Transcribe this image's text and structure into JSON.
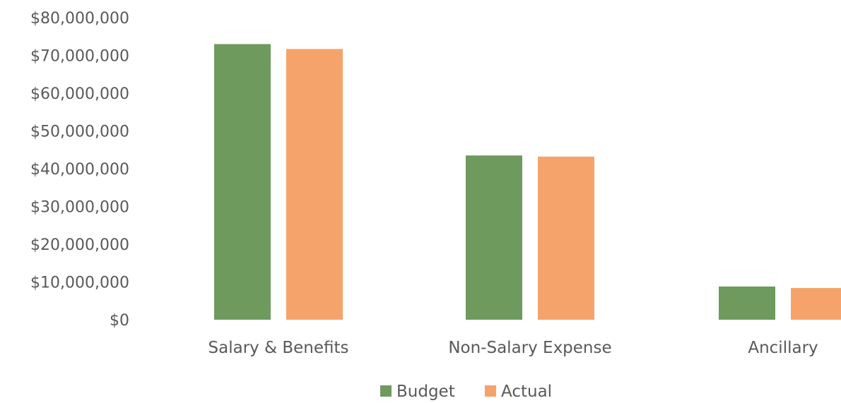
{
  "chart_data": {
    "type": "bar",
    "categories": [
      "Salary & Benefits",
      "Non-Salary Expense",
      "Ancillary"
    ],
    "series": [
      {
        "name": "Budget",
        "color": "#6e9a5e",
        "values": [
          73000000,
          43500000,
          8800000
        ]
      },
      {
        "name": "Actual",
        "color": "#f5a36a",
        "values": [
          71700000,
          43200000,
          8400000
        ]
      }
    ],
    "ylim": [
      0,
      80000000
    ],
    "yticks": [
      0,
      10000000,
      20000000,
      30000000,
      40000000,
      50000000,
      60000000,
      70000000,
      80000000
    ],
    "ytick_labels": [
      "$0",
      "$10,000,000",
      "$20,000,000",
      "$30,000,000",
      "$40,000,000",
      "$50,000,000",
      "$60,000,000",
      "$70,000,000",
      "$80,000,000"
    ],
    "grid": false,
    "legend": "bottom-center"
  }
}
